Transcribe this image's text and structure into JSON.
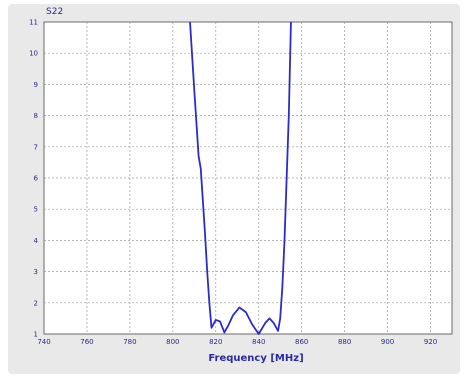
{
  "chart_data": {
    "type": "line",
    "title": "S22",
    "xlabel": "Frequency [MHz]",
    "ylabel": "",
    "xlim": [
      740,
      930
    ],
    "ylim": [
      1,
      11
    ],
    "xticks": [
      740,
      760,
      780,
      800,
      820,
      840,
      860,
      880,
      900,
      920
    ],
    "xtick_labels": [
      "740",
      "760",
      "780",
      "800",
      "820",
      "840",
      "860",
      "880",
      "900",
      "920"
    ],
    "yticks": [
      1,
      2,
      3,
      4,
      5,
      6,
      7,
      8,
      9,
      10,
      11
    ],
    "ytick_labels": [
      "1",
      "2",
      "3",
      "4",
      "5",
      "6",
      "7",
      "8",
      "9",
      "10",
      "11"
    ],
    "grid": true,
    "colors": {
      "line": "#2c2cc8",
      "frame_bg": "#e9e9e9",
      "plot_bg": "#ffffff",
      "text": "#2a2a8a"
    },
    "series": [
      {
        "values": [
          {
            "x": 808,
            "y": 11.0
          },
          {
            "x": 810,
            "y": 8.8
          },
          {
            "x": 812,
            "y": 6.7
          },
          {
            "x": 813,
            "y": 6.3
          },
          {
            "x": 815,
            "y": 4.2
          },
          {
            "x": 816,
            "y": 3.0
          },
          {
            "x": 817,
            "y": 2.0
          },
          {
            "x": 818,
            "y": 1.2
          },
          {
            "x": 820,
            "y": 1.45
          },
          {
            "x": 822,
            "y": 1.4
          },
          {
            "x": 824,
            "y": 1.05
          },
          {
            "x": 826,
            "y": 1.3
          },
          {
            "x": 828,
            "y": 1.6
          },
          {
            "x": 831,
            "y": 1.85
          },
          {
            "x": 834,
            "y": 1.7
          },
          {
            "x": 837,
            "y": 1.3
          },
          {
            "x": 840,
            "y": 1.0
          },
          {
            "x": 843,
            "y": 1.35
          },
          {
            "x": 845,
            "y": 1.5
          },
          {
            "x": 847,
            "y": 1.35
          },
          {
            "x": 849,
            "y": 1.1
          },
          {
            "x": 850,
            "y": 1.5
          },
          {
            "x": 851,
            "y": 2.5
          },
          {
            "x": 852,
            "y": 4.0
          },
          {
            "x": 853,
            "y": 6.0
          },
          {
            "x": 854,
            "y": 8.0
          },
          {
            "x": 855,
            "y": 11.0
          }
        ]
      }
    ]
  }
}
